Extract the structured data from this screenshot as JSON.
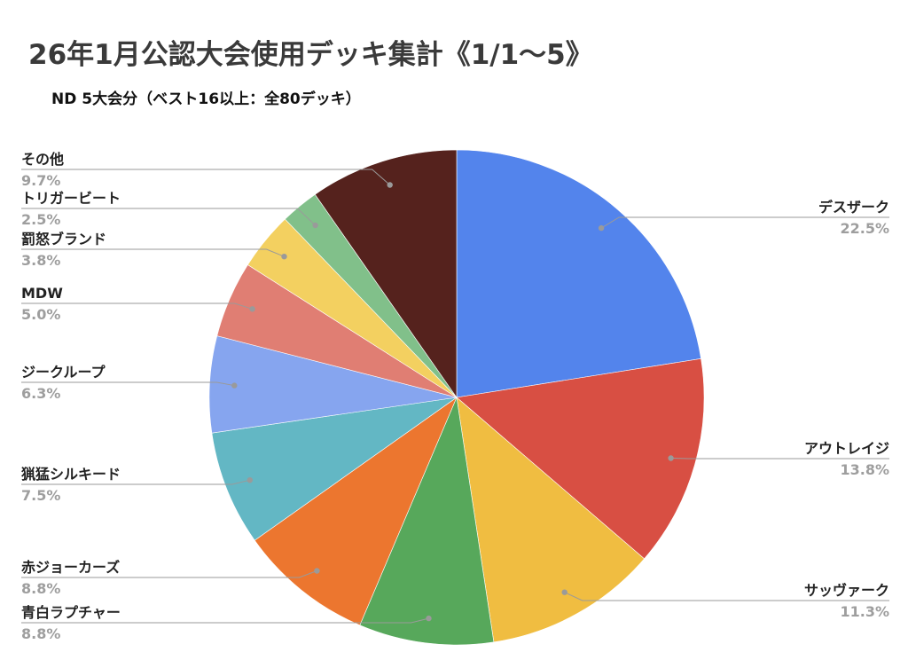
{
  "chart_data": {
    "type": "pie",
    "title": "26年1月公認大会使用デッキ集計《1/1〜5》",
    "subtitle": "ND 5大会分（ベスト16以上：全80デッキ）",
    "legend": "none",
    "slices": [
      {
        "label": "デスザーク",
        "value": 22.5,
        "display": "22.5%",
        "color": "#5384ec"
      },
      {
        "label": "アウトレイジ",
        "value": 13.8,
        "display": "13.8%",
        "color": "#d84f43"
      },
      {
        "label": "サッヴァーク",
        "value": 11.3,
        "display": "11.3%",
        "color": "#f0bd41"
      },
      {
        "label": "青白ラプチャー",
        "value": 8.8,
        "display": "8.8%",
        "color": "#57a85b"
      },
      {
        "label": "赤ジョーカーズ",
        "value": 8.8,
        "display": "8.8%",
        "color": "#ec762f"
      },
      {
        "label": "猟猛シルキード",
        "value": 7.5,
        "display": "7.5%",
        "color": "#63b7c4"
      },
      {
        "label": "ジークループ",
        "value": 6.3,
        "display": "6.3%",
        "color": "#86a5ef"
      },
      {
        "label": "MDW",
        "value": 5.0,
        "display": "5.0%",
        "color": "#e07e73"
      },
      {
        "label": "罰怒ブランド",
        "value": 3.8,
        "display": "3.8%",
        "color": "#f3d060"
      },
      {
        "label": "トリガービート",
        "value": 2.5,
        "display": "2.5%",
        "color": "#81c08a"
      },
      {
        "label": "その他",
        "value": 9.7,
        "display": "9.7%",
        "color": "#55221d"
      }
    ]
  }
}
